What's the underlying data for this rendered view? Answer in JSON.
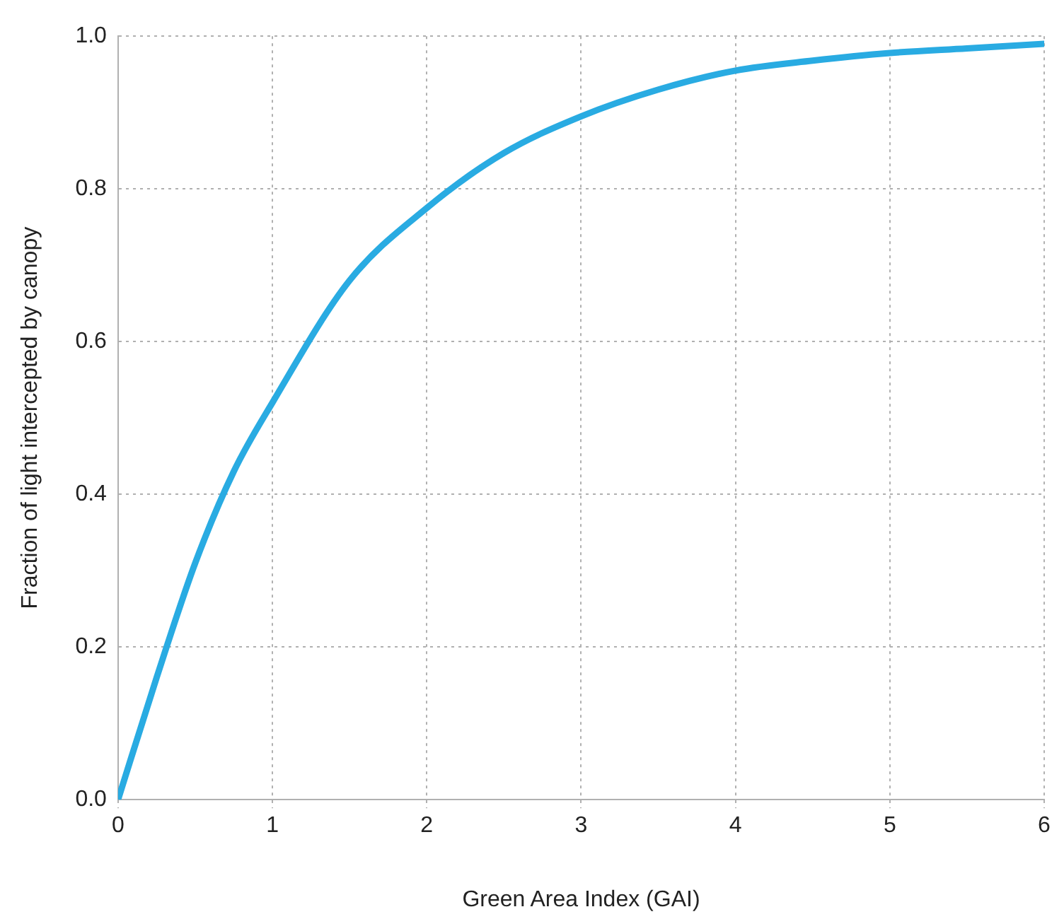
{
  "chart_data": {
    "type": "line",
    "xlabel": "Green Area Index (GAI)",
    "ylabel": "Fraction of light intercepted by canopy",
    "x": [
      0,
      0.25,
      0.5,
      0.75,
      1,
      1.5,
      2,
      2.5,
      3,
      3.5,
      4,
      4.5,
      5,
      5.5,
      6
    ],
    "series": [
      {
        "color": "#29abe2",
        "values": [
          0,
          0.16,
          0.31,
          0.43,
          0.52,
          0.68,
          0.775,
          0.847,
          0.895,
          0.93,
          0.955,
          0.968,
          0.978,
          0.984,
          0.99
        ]
      }
    ],
    "xlim": [
      0,
      6
    ],
    "xticks": [
      0,
      1,
      2,
      3,
      4,
      5,
      6
    ],
    "ylim": [
      0,
      1
    ],
    "yticks": [
      {
        "value": 0,
        "label": "0.0"
      },
      {
        "value": 0.2,
        "label": "0.2"
      },
      {
        "value": 0.4,
        "label": "0.4"
      },
      {
        "value": 0.6,
        "label": "0.6"
      },
      {
        "value": 0.8,
        "label": "0.8"
      },
      {
        "value": 1,
        "label": "1.0"
      }
    ],
    "grid": true,
    "marker": "none",
    "line_style": "solid",
    "legend": false
  }
}
